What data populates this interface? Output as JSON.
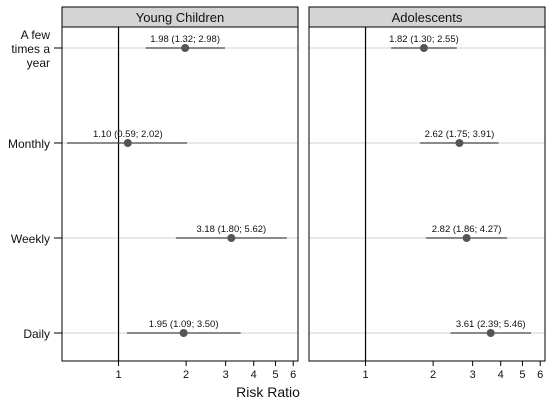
{
  "chart_data": {
    "type": "forest",
    "xlabel": "Risk Ratio",
    "x_scale": "log",
    "xlim": [
      0.56,
      6.3
    ],
    "x_ticks": [
      1,
      2,
      3,
      4,
      5,
      6
    ],
    "reference_line": 1,
    "grid": "horizontal",
    "categories": [
      "A few\ntimes a\nyear",
      "Monthly",
      "Weekly",
      "Daily"
    ],
    "panels": [
      {
        "name": "Young Children",
        "points": [
          {
            "category": "A few times a year",
            "estimate": 1.98,
            "lower": 1.32,
            "upper": 2.98,
            "label": "1.98 (1.32; 2.98)"
          },
          {
            "category": "Monthly",
            "estimate": 1.1,
            "lower": 0.59,
            "upper": 2.02,
            "label": "1.10 (0.59; 2.02)"
          },
          {
            "category": "Weekly",
            "estimate": 3.18,
            "lower": 1.8,
            "upper": 5.62,
            "label": "3.18 (1.80; 5.62)"
          },
          {
            "category": "Daily",
            "estimate": 1.95,
            "lower": 1.09,
            "upper": 3.5,
            "label": "1.95 (1.09; 3.50)"
          }
        ]
      },
      {
        "name": "Adolescents",
        "points": [
          {
            "category": "A few times a year",
            "estimate": 1.82,
            "lower": 1.3,
            "upper": 2.55,
            "label": "1.82 (1.30; 2.55)"
          },
          {
            "category": "Monthly",
            "estimate": 2.62,
            "lower": 1.75,
            "upper": 3.91,
            "label": "2.62 (1.75; 3.91)"
          },
          {
            "category": "Weekly",
            "estimate": 2.82,
            "lower": 1.86,
            "upper": 4.27,
            "label": "2.82 (1.86; 4.27)"
          },
          {
            "category": "Daily",
            "estimate": 3.61,
            "lower": 2.39,
            "upper": 5.46,
            "label": "3.61 (2.39; 5.46)"
          }
        ]
      }
    ],
    "colors": {
      "strip": "#d4d4d4",
      "frame": "#000000",
      "point": "#555555",
      "ci": "#444444",
      "grid": "#d2d2d2"
    }
  }
}
